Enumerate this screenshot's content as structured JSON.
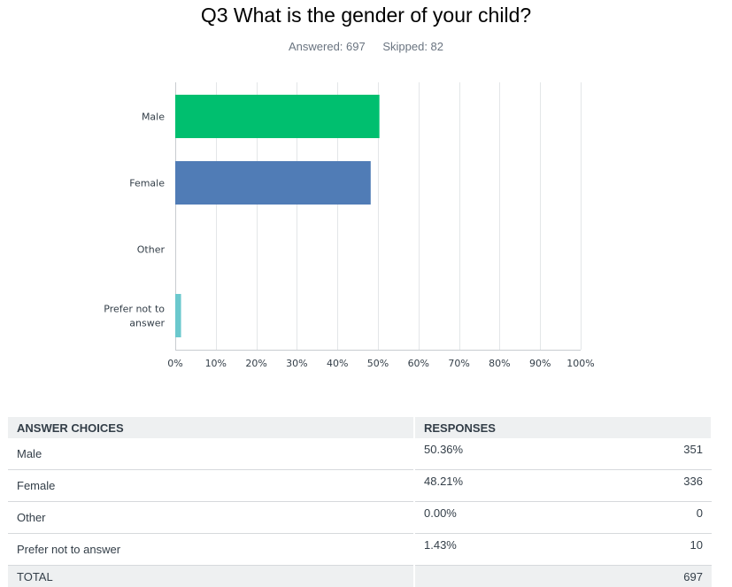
{
  "question": {
    "title": "Q3 What is the gender of your child?",
    "answered": "Answered: 697",
    "skipped": "Skipped: 82"
  },
  "chart_data": {
    "type": "bar",
    "orientation": "horizontal",
    "categories": [
      "Male",
      "Female",
      "Other",
      "Prefer not to answer"
    ],
    "values": [
      50.36,
      48.21,
      0.0,
      1.43
    ],
    "xlim": [
      0,
      100
    ],
    "x_ticks": [
      "0%",
      "10%",
      "20%",
      "30%",
      "40%",
      "50%",
      "60%",
      "70%",
      "80%",
      "90%",
      "100%"
    ],
    "grid": true,
    "colors": [
      "#00bf6f",
      "#507cb6",
      "#f9be00",
      "#6bc8cd"
    ]
  },
  "table": {
    "headers": [
      "ANSWER CHOICES",
      "RESPONSES"
    ],
    "rows": [
      {
        "choice": "Male",
        "percent": "50.36%",
        "count": "351"
      },
      {
        "choice": "Female",
        "percent": "48.21%",
        "count": "336"
      },
      {
        "choice": "Other",
        "percent": "0.00%",
        "count": "0"
      },
      {
        "choice": "Prefer not to answer",
        "percent": "1.43%",
        "count": "10"
      }
    ],
    "total_label": "TOTAL",
    "total_count": "697"
  }
}
